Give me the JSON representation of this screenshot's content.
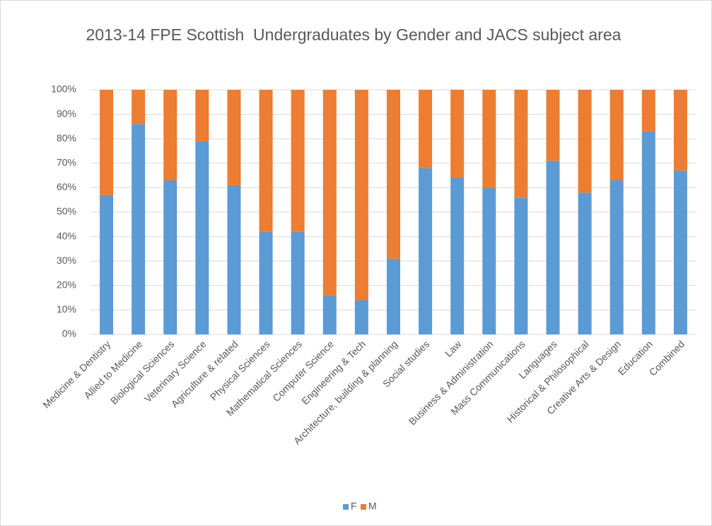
{
  "chart_data": {
    "type": "stacked_bar_100",
    "title": "2013-14 FPE Scottish  Undergraduates by Gender and JACS subject area",
    "categories": [
      "Medicine & Dentistry",
      "Allied to Medicine",
      "Biological Sciences",
      "Veterinary Science",
      "Agriculture & related",
      "Physical Sciences",
      "Mathematical Sciences",
      "Computer Science",
      "Engineering & Tech",
      "Architecture, building & planning",
      "Social studies",
      "Law",
      "Business & Administration",
      "Mass Communications",
      "Languages",
      "Historical & Philosophical",
      "Creative Arts & Design",
      "Education",
      "Combined"
    ],
    "series": [
      {
        "name": "F",
        "color": "#5b9bd5",
        "values": [
          57,
          86,
          63,
          79,
          61,
          42,
          42,
          16,
          14,
          31,
          68,
          64,
          60,
          56,
          71,
          58,
          63,
          83,
          67
        ]
      },
      {
        "name": "M",
        "color": "#ed7d31",
        "values": [
          43,
          14,
          37,
          21,
          39,
          58,
          58,
          84,
          86,
          69,
          32,
          36,
          40,
          44,
          29,
          42,
          37,
          17,
          33
        ]
      }
    ],
    "ylim": [
      0,
      100
    ],
    "yticks": [
      {
        "value": 0,
        "label": "0%"
      },
      {
        "value": 10,
        "label": "10%"
      },
      {
        "value": 20,
        "label": "20%"
      },
      {
        "value": 30,
        "label": "30%"
      },
      {
        "value": 40,
        "label": "40%"
      },
      {
        "value": 50,
        "label": "50%"
      },
      {
        "value": 60,
        "label": "60%"
      },
      {
        "value": 70,
        "label": "70%"
      },
      {
        "value": 80,
        "label": "80%"
      },
      {
        "value": 90,
        "label": "90%"
      },
      {
        "value": 100,
        "label": "100%"
      }
    ],
    "grid": true,
    "legend": "bottom"
  }
}
